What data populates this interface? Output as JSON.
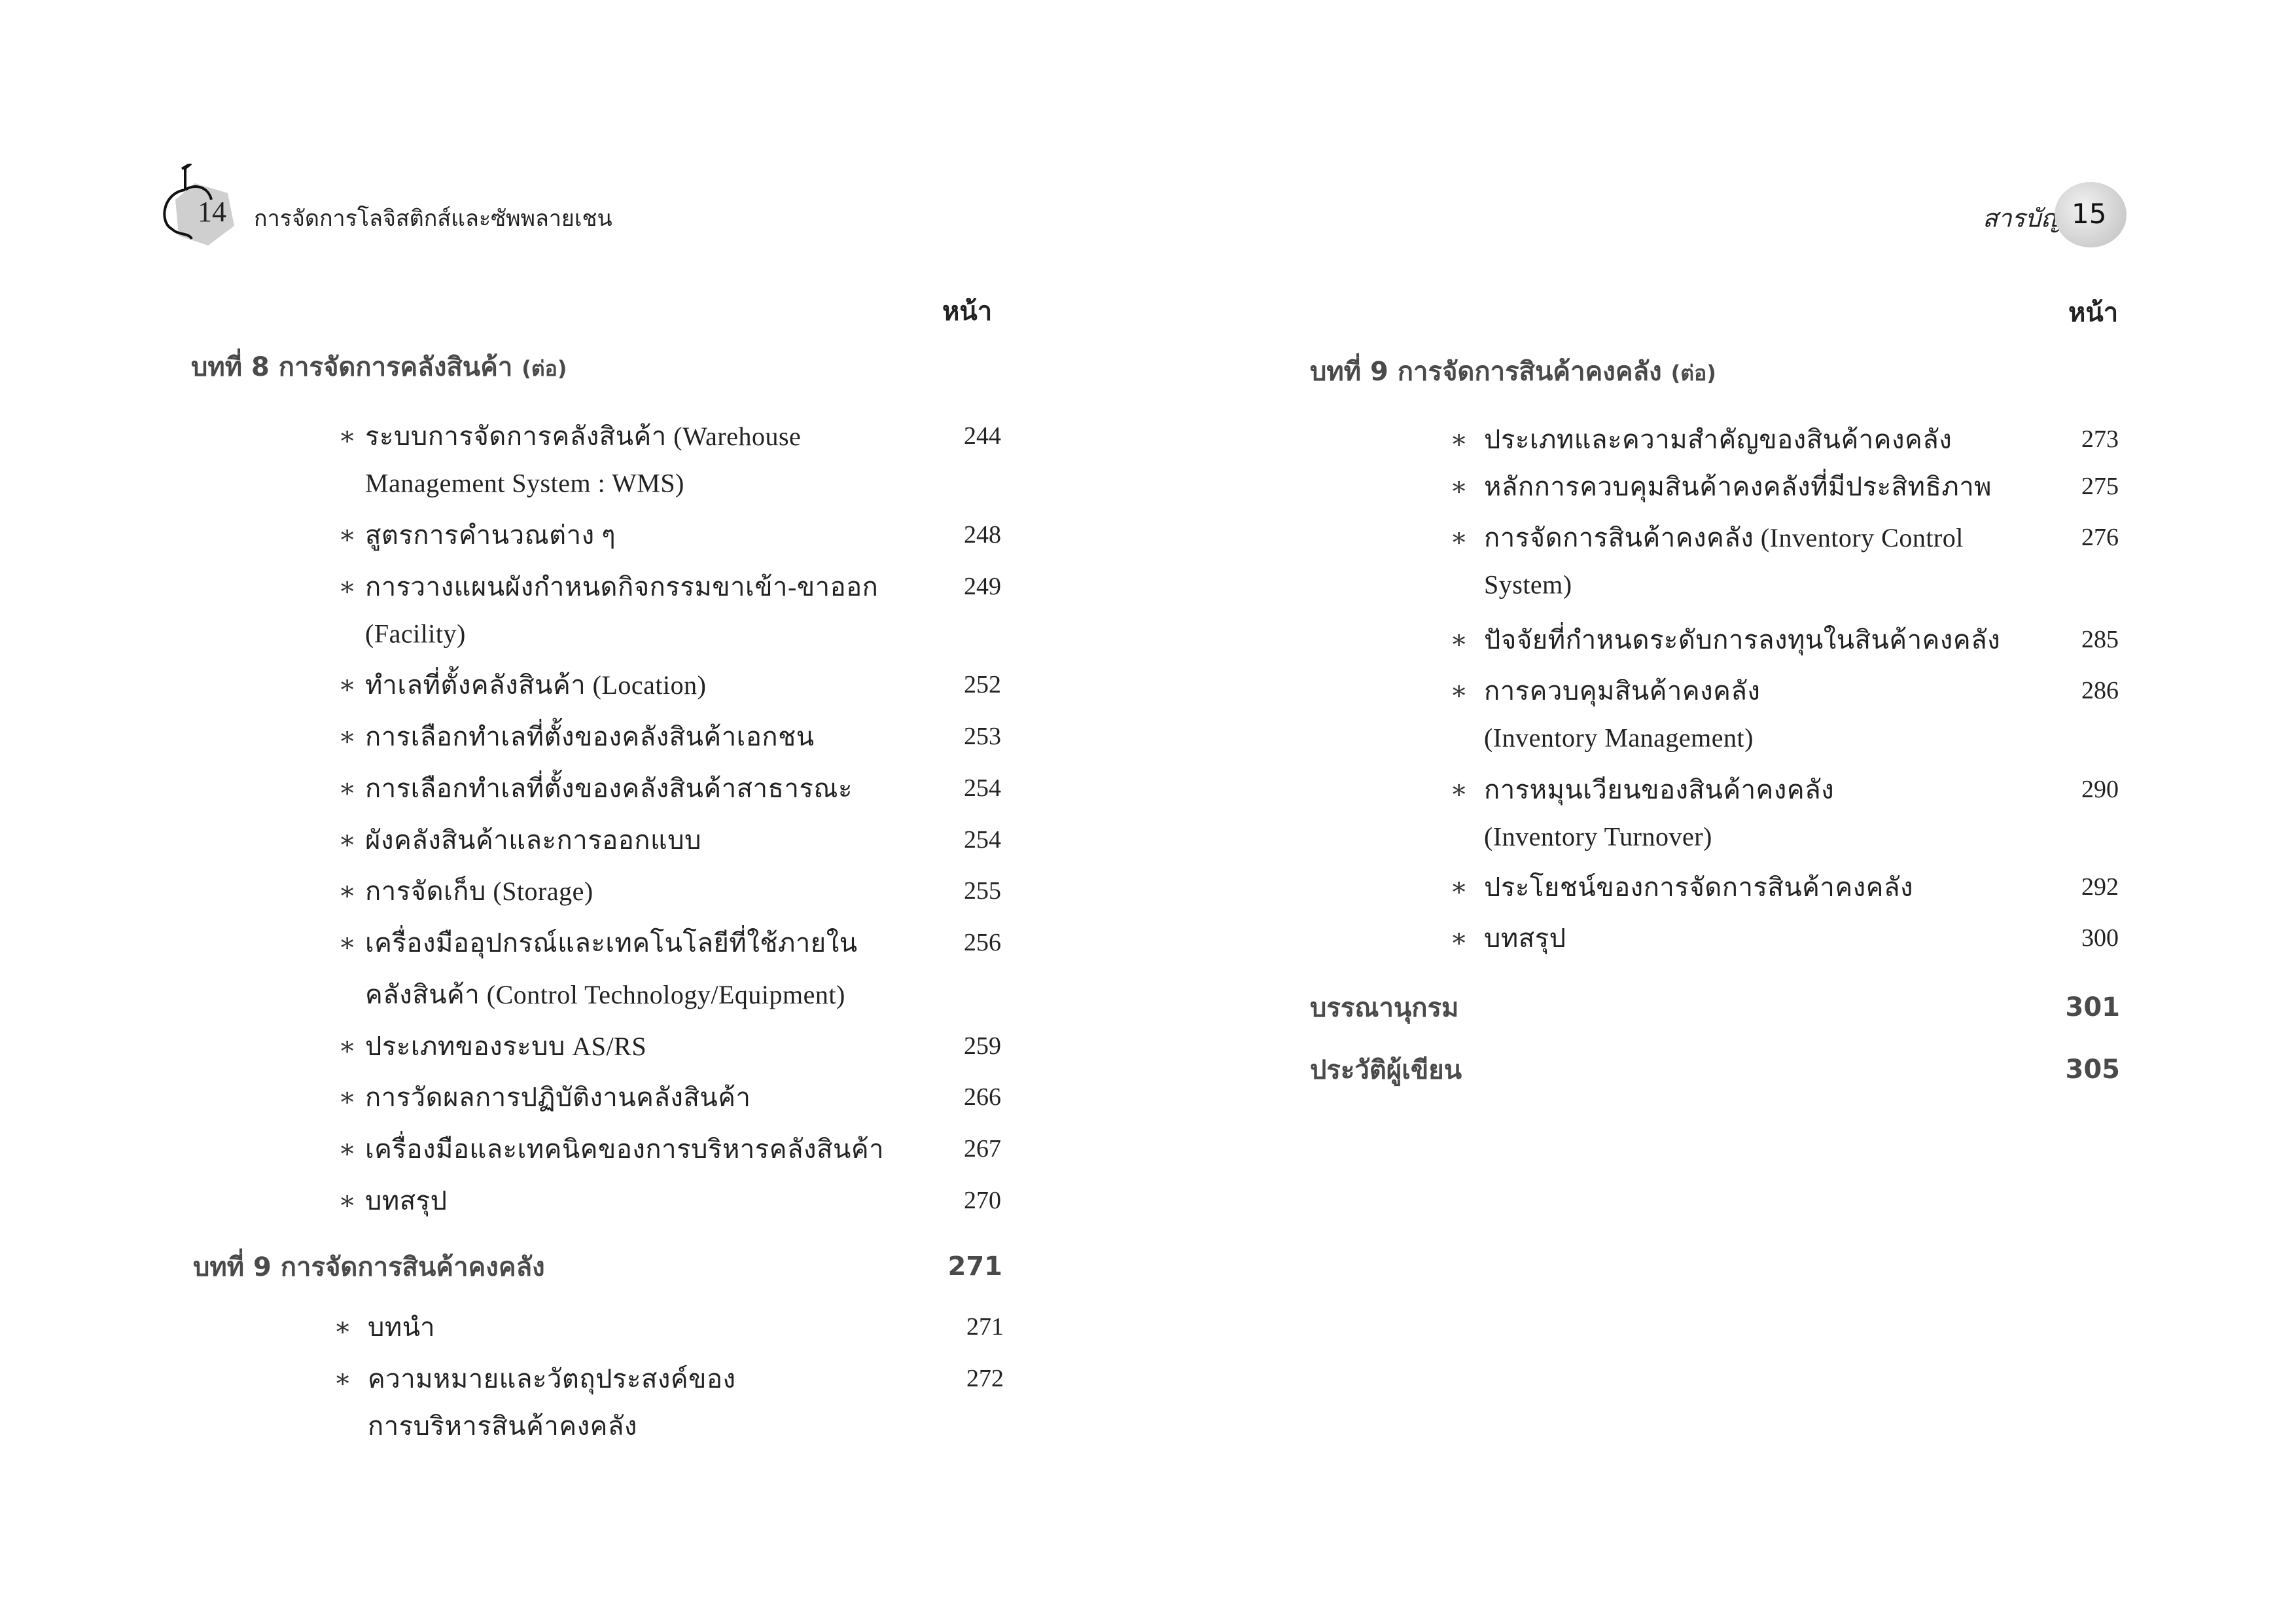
{
  "left_page": {
    "page_number": "14",
    "running_header": "การจัดการโลจิสติกส์และซัพพลายเชน",
    "page_column_label": "หน้า",
    "chapter8": {
      "title": "บทที่ 8  การจัดการคลังสินค้า",
      "suffix": "(ต่อ)"
    },
    "entries": [
      {
        "lines": [
          "ระบบการจัดการคลังสินค้า (Warehouse",
          "Management System : WMS)"
        ],
        "page": "244"
      },
      {
        "lines": [
          "สูตรการคำนวณต่าง ๆ"
        ],
        "page": "248"
      },
      {
        "lines": [
          "การวางแผนผังกำหนดกิจกรรมขาเข้า-ขาออก",
          "(Facility)"
        ],
        "page": "249"
      },
      {
        "lines": [
          "ทำเลที่ตั้งคลังสินค้า (Location)"
        ],
        "page": "252"
      },
      {
        "lines": [
          "การเลือกทำเลที่ตั้งของคลังสินค้าเอกชน"
        ],
        "page": "253"
      },
      {
        "lines": [
          "การเลือกทำเลที่ตั้งของคลังสินค้าสาธารณะ"
        ],
        "page": "254"
      },
      {
        "lines": [
          "ผังคลังสินค้าและการออกแบบ"
        ],
        "page": "254"
      },
      {
        "lines": [
          "การจัดเก็บ (Storage)"
        ],
        "page": "255"
      },
      {
        "lines": [
          "เครื่องมืออุปกรณ์และเทคโนโลยีที่ใช้ภายใน",
          "คลังสินค้า (Control Technology/Equipment)"
        ],
        "page": "256"
      },
      {
        "lines": [
          "ประเภทของระบบ AS/RS"
        ],
        "page": "259"
      },
      {
        "lines": [
          "การวัดผลการปฏิบัติงานคลังสินค้า"
        ],
        "page": "266"
      },
      {
        "lines": [
          "เครื่องมือและเทคนิคของการบริหารคลังสินค้า"
        ],
        "page": "267"
      },
      {
        "lines": [
          "บทสรุป"
        ],
        "page": "270"
      }
    ],
    "chapter9": {
      "title": "บทที่ 9  การจัดการสินค้าคงคลัง",
      "page": "271"
    },
    "entries9": [
      {
        "lines": [
          "บทนำ"
        ],
        "page": "271"
      },
      {
        "lines": [
          "ความหมายและวัตถุประสงค์ของ",
          "การบริหารสินค้าคงคลัง"
        ],
        "page": "272"
      }
    ]
  },
  "right_page": {
    "page_number": "15",
    "running_header": "สารบัญ",
    "page_column_label": "หน้า",
    "chapter9": {
      "title": "บทที่ 9  การจัดการสินค้าคงคลัง",
      "suffix": "(ต่อ)"
    },
    "entries": [
      {
        "lines": [
          "ประเภทและความสำคัญของสินค้าคงคลัง"
        ],
        "page": "273"
      },
      {
        "lines": [
          "หลักการควบคุมสินค้าคงคลังที่มีประสิทธิภาพ"
        ],
        "page": "275"
      },
      {
        "lines": [
          "การจัดการสินค้าคงคลัง (Inventory Control",
          "System)"
        ],
        "page": "276"
      },
      {
        "lines": [
          "ปัจจัยที่กำหนดระดับการลงทุนในสินค้าคงคลัง"
        ],
        "page": "285"
      },
      {
        "lines": [
          "การควบคุมสินค้าคงคลัง",
          "(Inventory Management)"
        ],
        "page": "286"
      },
      {
        "lines": [
          "การหมุนเวียนของสินค้าคงคลัง",
          "(Inventory Turnover)"
        ],
        "page": "290"
      },
      {
        "lines": [
          "ประโยชน์ของการจัดการสินค้าคงคลัง"
        ],
        "page": "292"
      },
      {
        "lines": [
          "บทสรุป"
        ],
        "page": "300"
      }
    ],
    "bibliography": {
      "title": "บรรณานุกรม",
      "page": "301"
    },
    "author_bio": {
      "title": "ประวัติผู้เขียน",
      "page": "305"
    }
  },
  "bullet_symbol": "∗",
  "colors": {
    "heading": "#4a4a4a",
    "badge_gray": "#cfcfcf"
  }
}
